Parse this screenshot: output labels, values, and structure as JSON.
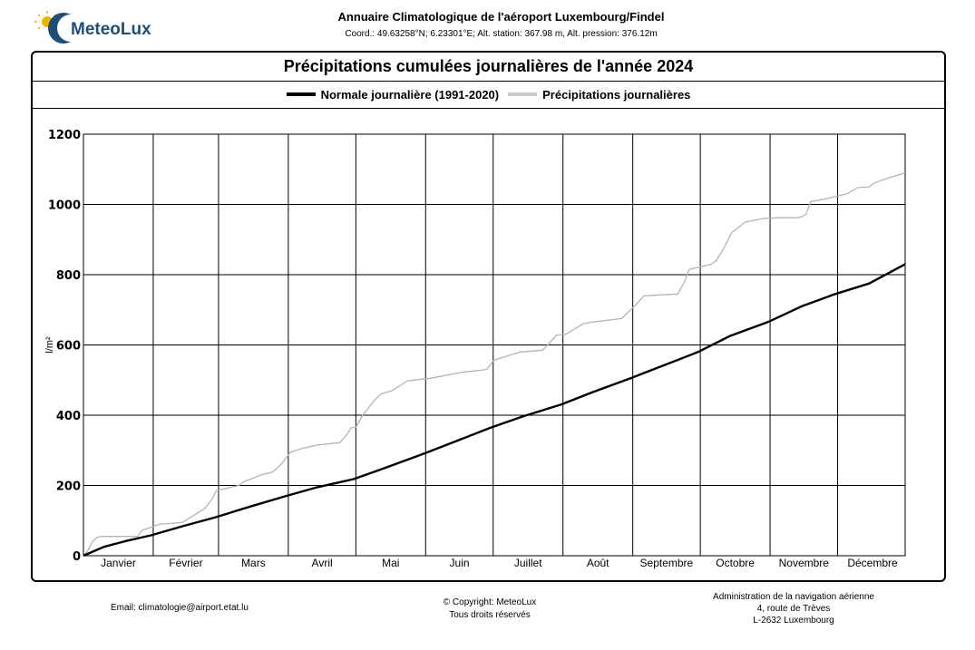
{
  "brand": {
    "name": "MeteoLux"
  },
  "header": {
    "title": "Annuaire Climatologique de l'aéroport Luxembourg/Findel",
    "coords": "Coord.: 49.63258°N; 6.23301°E; Alt. station: 367.98 m, Alt. pression: 376.12m"
  },
  "colors": {
    "normal": "#000000",
    "precip": "#b4b4b4",
    "logo_blue": "#1f4e79",
    "logo_sun": "#f0b400"
  },
  "chart_data": {
    "type": "line",
    "title": "Précipitations cumulées journalières de l'année 2024",
    "xlabel": "",
    "ylabel": "l/m²",
    "ylim": [
      0,
      1200
    ],
    "yticks": [
      0,
      200,
      400,
      600,
      800,
      1000,
      1200
    ],
    "xlim": [
      1,
      366
    ],
    "grid": true,
    "legend_position": "top-center",
    "months": [
      "Janvier",
      "Février",
      "Mars",
      "Avril",
      "Mai",
      "Juin",
      "Juillet",
      "Août",
      "Septembre",
      "Octobre",
      "Novembre",
      "Décembre"
    ],
    "series": [
      {
        "name": "Normale journalière (1991-2020)",
        "x": [
          1,
          10,
          20,
          31,
          45,
          60,
          75,
          91,
          105,
          121,
          135,
          152,
          166,
          182,
          196,
          213,
          227,
          244,
          258,
          274,
          288,
          305,
          320,
          335,
          350,
          366
        ],
        "y": [
          0,
          25,
          42,
          58,
          84,
          110,
          140,
          170,
          195,
          218,
          250,
          290,
          325,
          365,
          396,
          430,
          465,
          505,
          540,
          580,
          625,
          665,
          710,
          745,
          775,
          830
        ]
      },
      {
        "name": "Précipitations journalières",
        "x": [
          1,
          3,
          5,
          7,
          9,
          25,
          27,
          35,
          40,
          45,
          55,
          58,
          60,
          70,
          72,
          80,
          85,
          88,
          90,
          93,
          98,
          105,
          115,
          118,
          120,
          122,
          125,
          130,
          133,
          138,
          145,
          148,
          150,
          155,
          170,
          180,
          182,
          183,
          185,
          190,
          195,
          205,
          210,
          211,
          215,
          223,
          227,
          240,
          244,
          246,
          250,
          265,
          268,
          270,
          280,
          282,
          285,
          289,
          295,
          303,
          310,
          318,
          320,
          322,
          324,
          330,
          340,
          345,
          350,
          352,
          356,
          366
        ],
        "y": [
          0,
          15,
          40,
          52,
          55,
          55,
          72,
          90,
          92,
          95,
          135,
          160,
          185,
          200,
          210,
          230,
          238,
          255,
          270,
          295,
          305,
          315,
          322,
          345,
          365,
          365,
          400,
          440,
          460,
          470,
          498,
          500,
          502,
          505,
          523,
          530,
          545,
          555,
          560,
          570,
          580,
          585,
          620,
          628,
          630,
          660,
          665,
          675,
          700,
          712,
          740,
          745,
          780,
          815,
          830,
          840,
          870,
          920,
          950,
          960,
          962,
          962,
          965,
          972,
          1008,
          1015,
          1030,
          1048,
          1050,
          1060,
          1070,
          1090
        ]
      }
    ]
  },
  "footer": {
    "email": "Email: climatologie@airport.etat.lu",
    "copyright": "© Copyright: MeteoLux",
    "rights": "Tous droits réservés",
    "admin_line1": "Administration de la navigation aérienne",
    "admin_line2": "4, route de Trèves",
    "admin_line3": "L-2632 Luxembourg"
  }
}
